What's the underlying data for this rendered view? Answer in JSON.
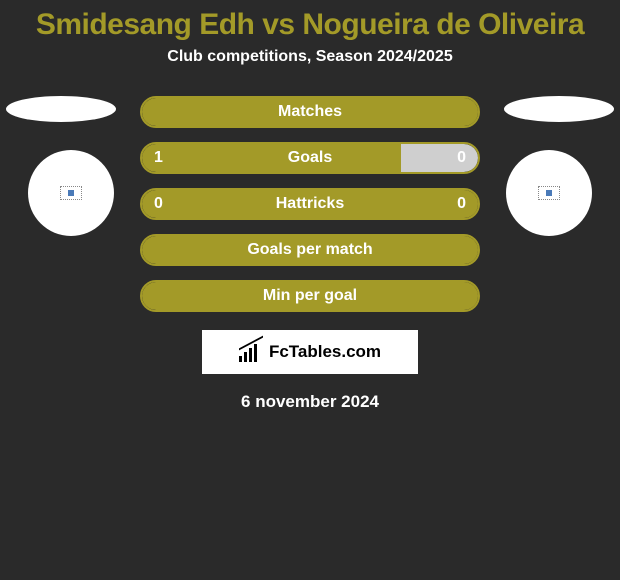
{
  "title": {
    "text": "Smidesang Edh vs Nogueira de Oliveira",
    "color": "#a39a28",
    "fontsize": 30
  },
  "subtitle": {
    "text": "Club competitions, Season 2024/2025",
    "color": "#ffffff",
    "fontsize": 16
  },
  "bars": [
    {
      "label": "Matches",
      "left_value": null,
      "right_value": null,
      "fill_left_pct": 100,
      "fill_right_pct": 0,
      "fill_color": "#a39a28",
      "border_color": "#a39a28",
      "label_color": "#ffffff",
      "value_color": "#ffffff",
      "label_fontsize": 16
    },
    {
      "label": "Goals",
      "left_value": "1",
      "right_value": "0",
      "fill_left_pct": 77,
      "fill_right_pct": 23,
      "fill_color": "#a39a28",
      "right_fill_color": "#cfcfcf",
      "border_color": "#a39a28",
      "label_color": "#ffffff",
      "value_color": "#ffffff",
      "label_fontsize": 16
    },
    {
      "label": "Hattricks",
      "left_value": "0",
      "right_value": "0",
      "fill_left_pct": 100,
      "fill_right_pct": 0,
      "fill_color": "#a39a28",
      "border_color": "#a39a28",
      "label_color": "#ffffff",
      "value_color": "#ffffff",
      "label_fontsize": 16
    },
    {
      "label": "Goals per match",
      "left_value": null,
      "right_value": null,
      "fill_left_pct": 100,
      "fill_right_pct": 0,
      "fill_color": "#a39a28",
      "border_color": "#a39a28",
      "label_color": "#ffffff",
      "value_color": "#ffffff",
      "label_fontsize": 16
    },
    {
      "label": "Min per goal",
      "left_value": null,
      "right_value": null,
      "fill_left_pct": 100,
      "fill_right_pct": 0,
      "fill_color": "#a39a28",
      "border_color": "#a39a28",
      "label_color": "#ffffff",
      "value_color": "#ffffff",
      "label_fontsize": 16
    }
  ],
  "logo": {
    "text": "FcTables.com"
  },
  "date": {
    "text": "6 november 2024",
    "color": "#ffffff",
    "fontsize": 17
  },
  "background_color": "#2a2a2a"
}
